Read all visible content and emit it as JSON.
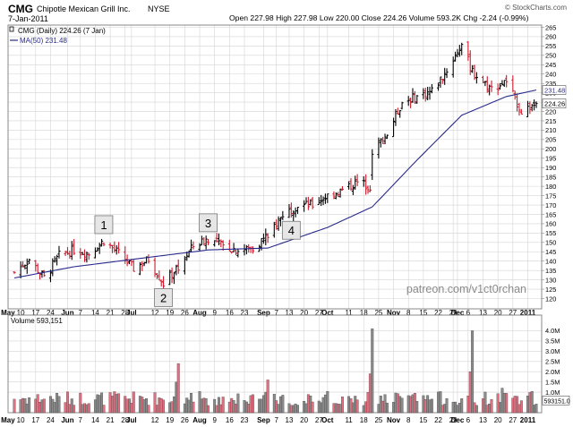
{
  "header": {
    "symbol": "CMG",
    "company": "Chipotle Mexican Grill Inc.",
    "exchange": "NYSE",
    "date": "7-Jan-2011",
    "credit": "© StockCharts.com",
    "quote": "Open 227.98  High 227.98  Low 220.00  Close 224.26  Volume 593.2K  Chg -2.24 (-0.99%)",
    "chg_arrow": "▼"
  },
  "legend": {
    "price": "CMG (Daily) 224.26 (7 Jan)",
    "ma": "MA(50) 231.48",
    "volume": "Volume 593,151"
  },
  "watermark": "patreon.com/v1ct0rchan",
  "annotations": [
    {
      "label": "1",
      "date": "2010-06-18",
      "price": 159.5
    },
    {
      "label": "2",
      "date": "2010-07-16",
      "price": 120.5
    },
    {
      "label": "3",
      "date": "2010-08-06",
      "price": 160.5
    },
    {
      "label": "4",
      "date": "2010-09-14",
      "price": 156.5
    }
  ],
  "colors": {
    "up": "#000000",
    "down": "#d01a2c",
    "ma": "#2a2a8c",
    "vol_up": "#8a8a8a",
    "vol_down": "#e07080",
    "grid": "#d4d4d4",
    "close_tag": "#000000",
    "ma_tag": "#2a2a8c"
  },
  "chart_data": {
    "type": "ohlc",
    "start_date": "2010-05-07",
    "end_date": "2011-01-07",
    "close_bands": [
      [
        "2010-05-07",
        134
      ],
      [
        "2010-05-14",
        141
      ],
      [
        "2010-05-21",
        131
      ],
      [
        "2010-05-28",
        143
      ],
      [
        "2010-06-04",
        146
      ],
      [
        "2010-06-11",
        144
      ],
      [
        "2010-06-18",
        151
      ],
      [
        "2010-06-25",
        144
      ],
      [
        "2010-07-02",
        136
      ],
      [
        "2010-07-09",
        141
      ],
      [
        "2010-07-16",
        128
      ],
      [
        "2010-07-23",
        137
      ],
      [
        "2010-07-30",
        148
      ],
      [
        "2010-08-06",
        152
      ],
      [
        "2010-08-13",
        148
      ],
      [
        "2010-08-20",
        146
      ],
      [
        "2010-08-27",
        147
      ],
      [
        "2010-09-03",
        154
      ],
      [
        "2010-09-10",
        165
      ],
      [
        "2010-09-17",
        170
      ],
      [
        "2010-09-24",
        170
      ],
      [
        "2010-10-01",
        175
      ],
      [
        "2010-10-08",
        178
      ],
      [
        "2010-10-15",
        182
      ],
      [
        "2010-10-21",
        180
      ],
      [
        "2010-10-22",
        199
      ],
      [
        "2010-10-29",
        208
      ],
      [
        "2010-11-05",
        225
      ],
      [
        "2010-11-12",
        228
      ],
      [
        "2010-11-19",
        231
      ],
      [
        "2010-11-26",
        242
      ],
      [
        "2010-12-03",
        256
      ],
      [
        "2010-12-08",
        241
      ],
      [
        "2010-12-17",
        232
      ],
      [
        "2010-12-24",
        236
      ],
      [
        "2010-12-31",
        220
      ],
      [
        "2011-01-07",
        224.26
      ]
    ],
    "ma50": {
      "name": "MA(50)",
      "points": [
        [
          "2010-05-07",
          131
        ],
        [
          "2010-06-04",
          137
        ],
        [
          "2010-07-09",
          142
        ],
        [
          "2010-08-06",
          146
        ],
        [
          "2010-09-03",
          147
        ],
        [
          "2010-10-01",
          158
        ],
        [
          "2010-10-22",
          169
        ],
        [
          "2010-11-12",
          194
        ],
        [
          "2010-12-03",
          218
        ],
        [
          "2010-12-24",
          228
        ],
        [
          "2011-01-07",
          231.48
        ]
      ]
    },
    "volume_spikes_millions": [
      [
        "2010-07-23",
        2.4
      ],
      [
        "2010-07-22",
        1.5
      ],
      [
        "2010-09-03",
        1.6
      ],
      [
        "2010-10-22",
        4.1
      ],
      [
        "2010-10-21",
        1.9
      ],
      [
        "2010-12-08",
        4.0
      ],
      [
        "2010-12-07",
        2.0
      ],
      [
        "2010-12-22",
        1.2
      ]
    ],
    "price_axis": {
      "min": 120,
      "max": 265,
      "step": 5,
      "side": "right"
    },
    "volume_axis": {
      "labels": [
        "1.0M",
        "1.5M",
        "2.0M",
        "2.5M",
        "3.0M",
        "3.5M",
        "4.0M"
      ],
      "values": [
        1.0,
        1.5,
        2.0,
        2.5,
        3.0,
        3.5,
        4.0
      ],
      "max": 4.5
    },
    "x_ticks": [
      {
        "label": "May",
        "date": "2010-05-04",
        "bold": true
      },
      {
        "label": "10",
        "date": "2010-05-10"
      },
      {
        "label": "17",
        "date": "2010-05-17"
      },
      {
        "label": "24",
        "date": "2010-05-24"
      },
      {
        "label": "Jun",
        "date": "2010-06-01",
        "bold": true
      },
      {
        "label": "7",
        "date": "2010-06-07"
      },
      {
        "label": "14",
        "date": "2010-06-14"
      },
      {
        "label": "21",
        "date": "2010-06-21"
      },
      {
        "label": "28",
        "date": "2010-06-28"
      },
      {
        "label": "Jul",
        "date": "2010-07-01",
        "bold": true
      },
      {
        "label": "12",
        "date": "2010-07-12"
      },
      {
        "label": "19",
        "date": "2010-07-19"
      },
      {
        "label": "26",
        "date": "2010-07-26"
      },
      {
        "label": "Aug",
        "date": "2010-08-02",
        "bold": true
      },
      {
        "label": "9",
        "date": "2010-08-09"
      },
      {
        "label": "16",
        "date": "2010-08-16"
      },
      {
        "label": "23",
        "date": "2010-08-23"
      },
      {
        "label": "Sep",
        "date": "2010-09-01",
        "bold": true
      },
      {
        "label": "7",
        "date": "2010-09-07"
      },
      {
        "label": "13",
        "date": "2010-09-13"
      },
      {
        "label": "20",
        "date": "2010-09-20"
      },
      {
        "label": "27",
        "date": "2010-09-27"
      },
      {
        "label": "Oct",
        "date": "2010-10-01",
        "bold": true
      },
      {
        "label": "11",
        "date": "2010-10-11"
      },
      {
        "label": "18",
        "date": "2010-10-18"
      },
      {
        "label": "25",
        "date": "2010-10-25"
      },
      {
        "label": "Nov",
        "date": "2010-11-01",
        "bold": true
      },
      {
        "label": "8",
        "date": "2010-11-08"
      },
      {
        "label": "15",
        "date": "2010-11-15"
      },
      {
        "label": "22",
        "date": "2010-11-22"
      },
      {
        "label": "29",
        "date": "2010-11-29"
      },
      {
        "label": "Dec",
        "date": "2010-12-01",
        "bold": true
      },
      {
        "label": "6",
        "date": "2010-12-06"
      },
      {
        "label": "13",
        "date": "2010-12-13"
      },
      {
        "label": "20",
        "date": "2010-12-20"
      },
      {
        "label": "27",
        "date": "2010-12-27"
      },
      {
        "label": "2011",
        "date": "2011-01-03",
        "bold": true
      }
    ],
    "last_close": {
      "value": 224.26,
      "label": "224.26"
    },
    "last_ma": {
      "value": 231.48,
      "label": "231.48"
    },
    "last_volume_label": "593151.0"
  }
}
